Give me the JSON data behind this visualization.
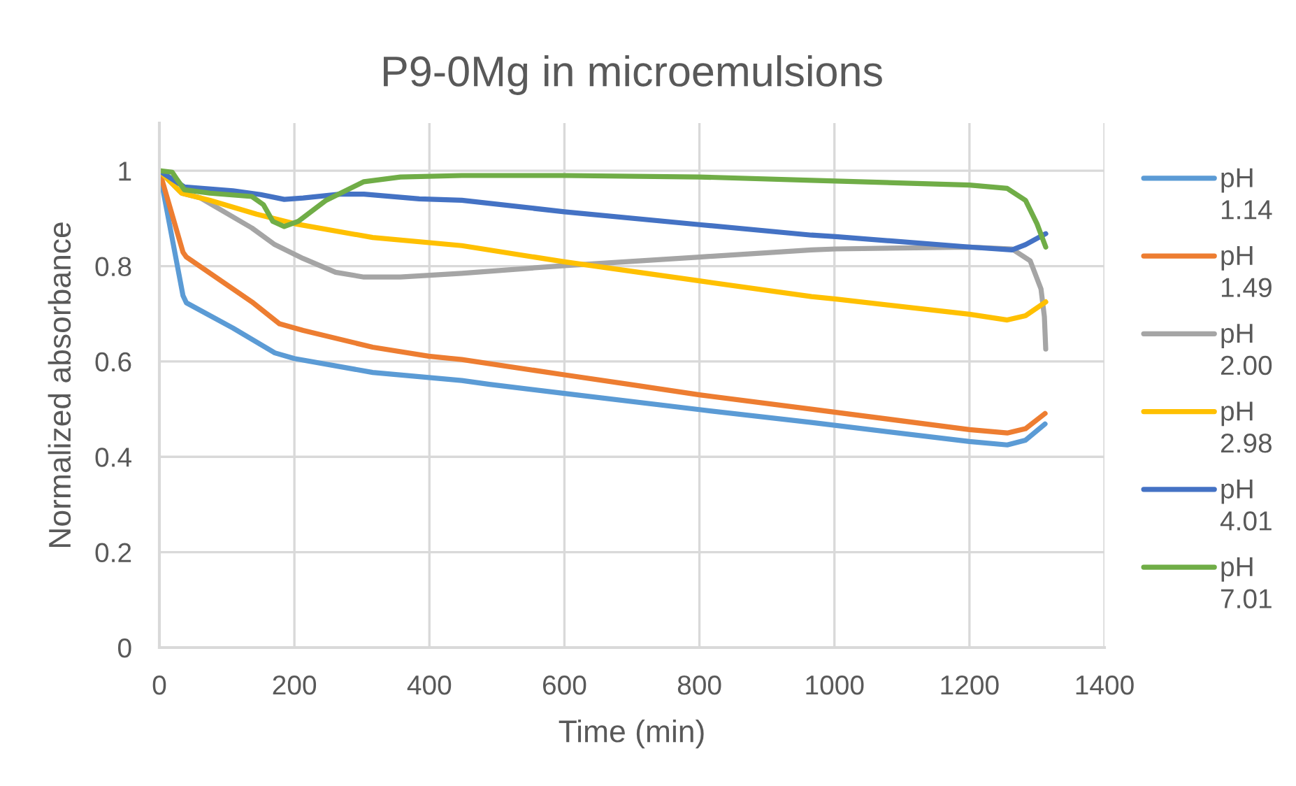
{
  "chart_data": {
    "type": "line",
    "title": "P9-0Mg in microemulsions",
    "xlabel": "Time (min)",
    "ylabel": "Normalized absorbance",
    "xlim": [
      0,
      1400
    ],
    "xticks": [
      0,
      200,
      400,
      600,
      800,
      1000,
      1200,
      1400
    ],
    "ylim": [
      0,
      1.1
    ],
    "yticks": [
      0,
      0.2,
      0.4,
      0.6,
      0.8,
      1
    ],
    "grid": true,
    "legend": "right",
    "marker": "none",
    "line_style": "solid",
    "series": [
      {
        "name": "pH 1.14",
        "color": "#5b9bd5",
        "x": [
          0,
          35,
          40,
          109,
          171,
          200,
          316,
          448,
          489,
          600,
          800,
          966,
          1200,
          1256,
          1283,
          1312
        ],
        "values": [
          1.0,
          0.738,
          0.723,
          0.67,
          0.618,
          0.606,
          0.577,
          0.56,
          0.552,
          0.533,
          0.499,
          0.472,
          0.432,
          0.425,
          0.435,
          0.469
        ]
      },
      {
        "name": "pH 1.49",
        "color": "#ed7d31",
        "x": [
          0,
          35,
          40,
          137,
          178,
          213,
          316,
          399,
          448,
          600,
          696,
          800,
          966,
          1200,
          1256,
          1283,
          1312
        ],
        "values": [
          1.0,
          0.829,
          0.819,
          0.725,
          0.679,
          0.665,
          0.63,
          0.611,
          0.604,
          0.572,
          0.552,
          0.53,
          0.5,
          0.457,
          0.45,
          0.459,
          0.491
        ]
      },
      {
        "name": "pH 2.00",
        "color": "#a5a5a5",
        "x": [
          0,
          33,
          61,
          137,
          171,
          213,
          261,
          303,
          357,
          448,
          600,
          800,
          966,
          1002,
          1200,
          1263,
          1290,
          1306,
          1311,
          1313
        ],
        "values": [
          1.0,
          0.953,
          0.943,
          0.88,
          0.845,
          0.816,
          0.787,
          0.777,
          0.777,
          0.785,
          0.801,
          0.819,
          0.834,
          0.836,
          0.84,
          0.836,
          0.811,
          0.752,
          0.694,
          0.626
        ]
      },
      {
        "name": "pH 2.98",
        "color": "#ffc000",
        "x": [
          0,
          33,
          75,
          144,
          200,
          316,
          448,
          600,
          800,
          966,
          1002,
          1200,
          1256,
          1283,
          1313
        ],
        "values": [
          1.0,
          0.953,
          0.938,
          0.909,
          0.889,
          0.86,
          0.843,
          0.809,
          0.769,
          0.736,
          0.731,
          0.699,
          0.687,
          0.696,
          0.725
        ]
      },
      {
        "name": "pH 4.01",
        "color": "#4472c4",
        "x": [
          0,
          37,
          109,
          150,
          185,
          213,
          268,
          303,
          385,
          448,
          600,
          800,
          966,
          1002,
          1200,
          1263,
          1283,
          1313
        ],
        "values": [
          1.0,
          0.966,
          0.958,
          0.95,
          0.94,
          0.943,
          0.951,
          0.951,
          0.941,
          0.938,
          0.914,
          0.887,
          0.865,
          0.862,
          0.84,
          0.834,
          0.845,
          0.868
        ]
      },
      {
        "name": "pH 7.01",
        "color": "#70ad47",
        "x": [
          0,
          19,
          26,
          37,
          75,
          137,
          154,
          168,
          185,
          206,
          247,
          303,
          357,
          448,
          600,
          800,
          966,
          1200,
          1256,
          1283,
          1300,
          1313
        ],
        "values": [
          1.0,
          0.997,
          0.982,
          0.96,
          0.953,
          0.946,
          0.929,
          0.894,
          0.883,
          0.894,
          0.938,
          0.977,
          0.987,
          0.99,
          0.99,
          0.987,
          0.98,
          0.97,
          0.963,
          0.938,
          0.889,
          0.84
        ]
      }
    ]
  }
}
